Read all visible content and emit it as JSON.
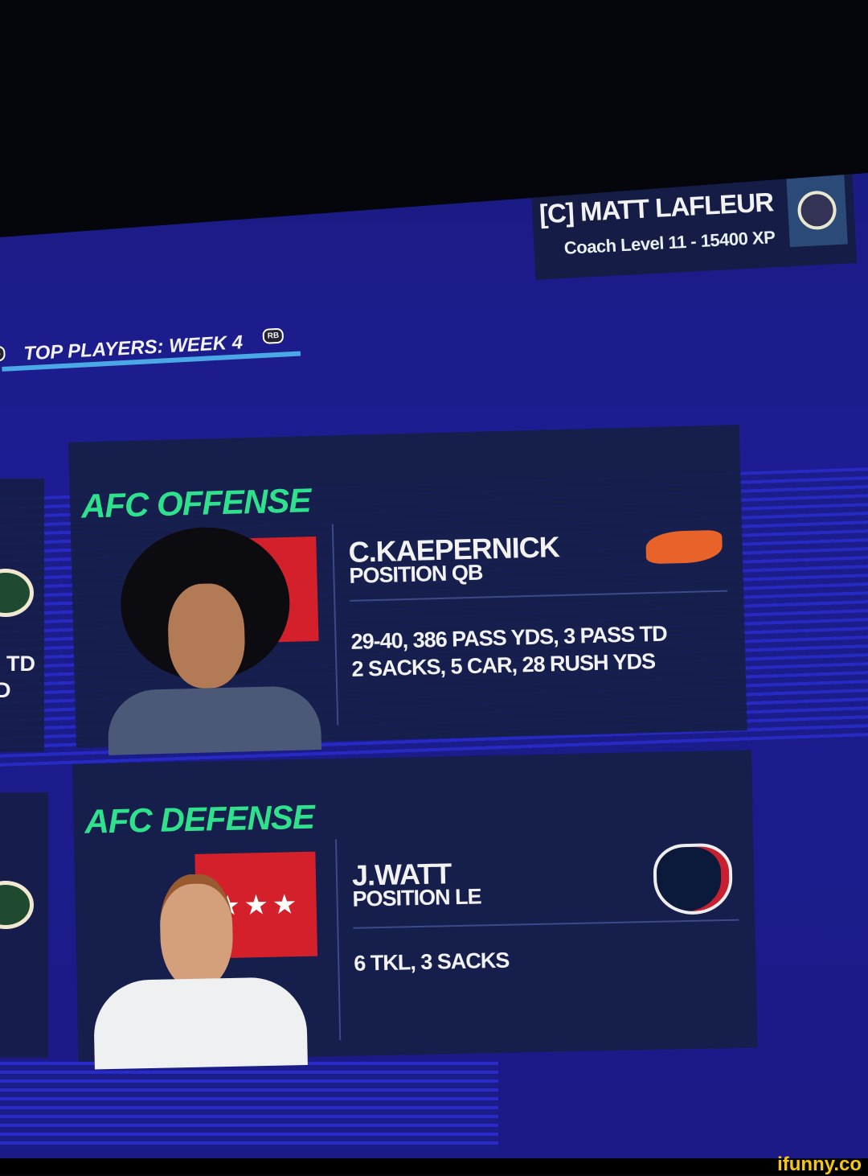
{
  "coach": {
    "name": "[C] MATT LAFLEUR",
    "level": "Coach Level 11 - 15400 XP"
  },
  "nav": {
    "left_button": "LB",
    "title": "TOP PLAYERS: WEEK 4",
    "right_button": "RB"
  },
  "side_panel": {
    "stats_fragment_1": "TD",
    "stats_fragment_2": "D",
    "team_icon": "packers-logo"
  },
  "cards": [
    {
      "title": "AFC OFFENSE",
      "conference_logo": "afc-logo",
      "team_icon": "broncos-logo",
      "player": "C.KAEPERNICK",
      "position": "POSITION QB",
      "stats_line1": "29-40, 386 PASS YDS, 3 PASS TD",
      "stats_line2": "2 SACKS, 5 CAR, 28 RUSH YDS"
    },
    {
      "title": "AFC DEFENSE",
      "conference_logo": "afc-logo",
      "team_icon": "texans-logo",
      "player": "J.WATT",
      "position": "POSITION LE",
      "stats_line1": "6 TKL, 3 SACKS"
    }
  ],
  "colors": {
    "background": "#1d1c92",
    "title_green": "#2fe08c",
    "afc_red": "#d4202a",
    "panel": "#161e46"
  },
  "watermark": "ifunny.co"
}
